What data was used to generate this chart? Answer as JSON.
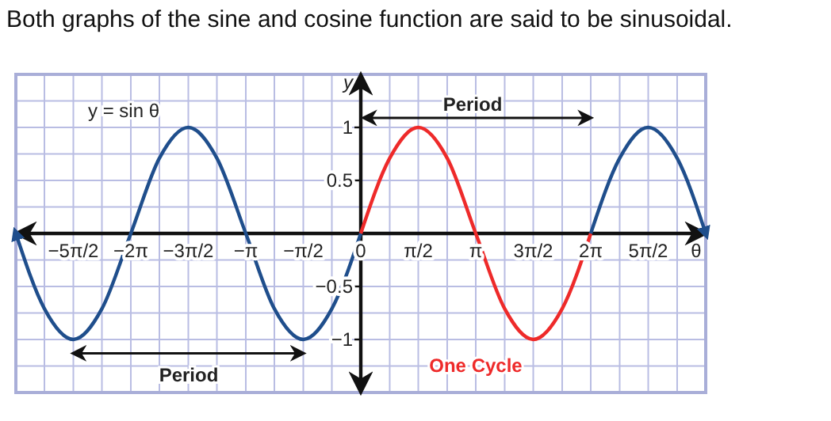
{
  "chart_data": {
    "type": "line",
    "title": "Both graphs of the sine and cosine function are said to be sinusoidal.",
    "xlabel": "θ",
    "ylabel": "y",
    "x": [
      -9.42,
      -8.64,
      -7.85,
      -7.07,
      -6.28,
      -5.5,
      -4.71,
      -3.93,
      -3.14,
      -2.36,
      -1.57,
      -0.79,
      0
    ],
    "series": [
      {
        "color": "#1f4e8c",
        "values": [
          0,
          -0.71,
          -1,
          -0.71,
          0,
          0.71,
          1,
          0.71,
          0,
          -0.71,
          -1,
          -0.71,
          0
        ]
      },
      {
        "color": "#ee2a2a",
        "x": [
          0,
          0.79,
          1.57,
          2.36,
          3.14,
          3.93,
          4.71,
          5.5,
          6.28
        ],
        "values": [
          0,
          0.71,
          1,
          0.71,
          0,
          -0.71,
          -1,
          -0.71,
          0
        ]
      },
      {
        "color": "#1f4e8c",
        "x": [
          6.28,
          7.07,
          7.85,
          8.64,
          9.42
        ],
        "values": [
          0,
          0.71,
          1,
          0.71,
          0
        ]
      }
    ],
    "xlim": [
      -9.42,
      9.42
    ],
    "ylim": [
      -1.5,
      1.5
    ],
    "xticks": [
      {
        "value": -9.42,
        "label": null
      },
      {
        "value": -8.64,
        "label": null
      },
      {
        "value": -7.85,
        "label": "−5π/2"
      },
      {
        "value": -7.07,
        "label": null
      },
      {
        "value": -6.28,
        "label": "−2π"
      },
      {
        "value": -5.5,
        "label": null
      },
      {
        "value": -4.71,
        "label": "−3π/2"
      },
      {
        "value": -3.93,
        "label": null
      },
      {
        "value": -3.14,
        "label": "−π"
      },
      {
        "value": -2.36,
        "label": null
      },
      {
        "value": -1.57,
        "label": "−π/2"
      },
      {
        "value": -0.79,
        "label": null
      },
      {
        "value": 0,
        "label": "0"
      },
      {
        "value": 0.79,
        "label": null
      },
      {
        "value": 1.57,
        "label": "π/2"
      },
      {
        "value": 2.36,
        "label": null
      },
      {
        "value": 3.14,
        "label": "π"
      },
      {
        "value": 3.93,
        "label": null
      },
      {
        "value": 4.71,
        "label": "3π/2"
      },
      {
        "value": 5.5,
        "label": null
      },
      {
        "value": 6.28,
        "label": "2π"
      },
      {
        "value": 7.07,
        "label": null
      },
      {
        "value": 7.85,
        "label": "5π/2"
      },
      {
        "value": 8.64,
        "label": null
      },
      {
        "value": 9.42,
        "label": null
      }
    ],
    "yticks": [
      {
        "value": -1.5,
        "label": null
      },
      {
        "value": -1.25,
        "label": null
      },
      {
        "value": -1,
        "label": "−1"
      },
      {
        "value": -0.75,
        "label": null
      },
      {
        "value": -0.5,
        "label": "−0.5"
      },
      {
        "value": -0.25,
        "label": null
      },
      {
        "value": 0.25,
        "label": null
      },
      {
        "value": 0.5,
        "label": "0.5"
      },
      {
        "value": 0.75,
        "label": null
      },
      {
        "value": 1,
        "label": "1"
      },
      {
        "value": 1.25,
        "label": null
      },
      {
        "value": 1.5,
        "label": null
      }
    ],
    "grid": true,
    "marker": "none",
    "line_style": "solid",
    "annotations": [
      "y = sin θ",
      "Period",
      "One Cycle",
      "Period"
    ]
  }
}
